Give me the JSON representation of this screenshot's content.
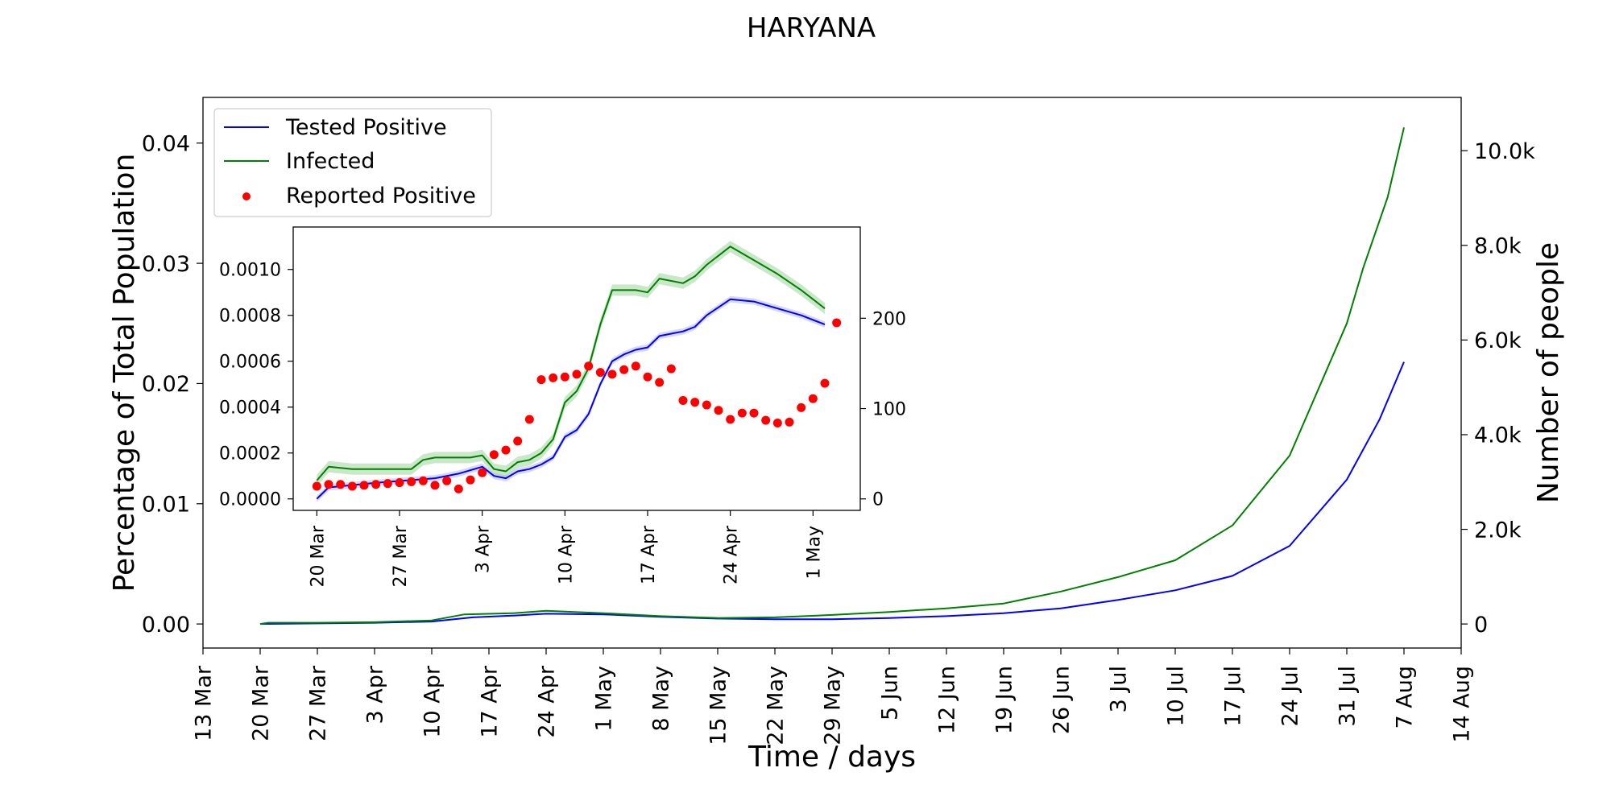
{
  "title": "HARYANA",
  "colors": {
    "tested": "#0000ff",
    "infected": "#008000",
    "reported": "#ff0000",
    "band_infected": "#9ed39e",
    "band_tested": "#b8b8f0"
  },
  "legend": {
    "placement": "upper-left",
    "items": [
      {
        "label": "Tested Positive",
        "marker": "line",
        "color": "#0000ff"
      },
      {
        "label": "Infected",
        "marker": "line",
        "color": "#008000"
      },
      {
        "label": "Reported Positive",
        "marker": "dot",
        "color": "#ff0000"
      }
    ]
  },
  "chart_data": [
    {
      "id": "main",
      "type": "line",
      "title": "HARYANA",
      "xlabel": "Time / days",
      "ylabel": "Percentage of Total Population",
      "y2label": "Number of people",
      "x_ticks": [
        "13 Mar",
        "20 Mar",
        "27 Mar",
        "3 Apr",
        "10 Apr",
        "17 Apr",
        "24 Apr",
        "1 May",
        "8 May",
        "15 May",
        "22 May",
        "29 May",
        "5 Jun",
        "12 Jun",
        "19 Jun",
        "26 Jun",
        "3 Jul",
        "10 Jul",
        "17 Jul",
        "24 Jul",
        "31 Jul",
        "7 Aug",
        "14 Aug"
      ],
      "x_tick_dates": [
        "2020-03-13",
        "2020-03-20",
        "2020-03-27",
        "2020-04-03",
        "2020-04-10",
        "2020-04-17",
        "2020-04-24",
        "2020-05-01",
        "2020-05-08",
        "2020-05-15",
        "2020-05-22",
        "2020-05-29",
        "2020-06-05",
        "2020-06-12",
        "2020-06-19",
        "2020-06-26",
        "2020-07-03",
        "2020-07-10",
        "2020-07-17",
        "2020-07-24",
        "2020-07-31",
        "2020-08-07",
        "2020-08-14"
      ],
      "xlim": [
        "2020-03-13",
        "2020-08-14"
      ],
      "y_ticks": [
        "0.00",
        "0.01",
        "0.02",
        "0.03",
        "0.04"
      ],
      "y_tick_values": [
        0,
        0.01,
        0.02,
        0.03,
        0.04
      ],
      "ylim": [
        -0.002,
        0.0438
      ],
      "y2_ticks": [
        "0",
        "2.0k",
        "4.0k",
        "6.0k",
        "8.0k",
        "10.0k"
      ],
      "y2_tick_values": [
        0,
        2000,
        4000,
        6000,
        8000,
        10000
      ],
      "y2lim": [
        -508,
        11126
      ],
      "grid": false,
      "series": [
        {
          "name": "Tested Positive",
          "color": "#0000ff",
          "axis": "left",
          "points": [
            [
              "2020-03-20",
              0.0
            ],
            [
              "2020-03-27",
              5e-05
            ],
            [
              "2020-04-03",
              0.0001
            ],
            [
              "2020-04-10",
              0.0002
            ],
            [
              "2020-04-15",
              0.00055
            ],
            [
              "2020-04-20",
              0.0007
            ],
            [
              "2020-04-24",
              0.00085
            ],
            [
              "2020-05-01",
              0.0008
            ],
            [
              "2020-05-08",
              0.0006
            ],
            [
              "2020-05-15",
              0.00045
            ],
            [
              "2020-05-22",
              0.0004
            ],
            [
              "2020-05-29",
              0.0004
            ],
            [
              "2020-06-05",
              0.0005
            ],
            [
              "2020-06-12",
              0.00065
            ],
            [
              "2020-06-19",
              0.0009
            ],
            [
              "2020-06-26",
              0.0013
            ],
            [
              "2020-07-03",
              0.002
            ],
            [
              "2020-07-10",
              0.0028
            ],
            [
              "2020-07-17",
              0.004
            ],
            [
              "2020-07-24",
              0.0065
            ],
            [
              "2020-07-31",
              0.012
            ],
            [
              "2020-08-04",
              0.017
            ],
            [
              "2020-08-07",
              0.0218
            ]
          ]
        },
        {
          "name": "Infected",
          "color": "#008000",
          "axis": "left",
          "points": [
            [
              "2020-03-20",
              0.0
            ],
            [
              "2020-03-21",
              0.0001
            ],
            [
              "2020-03-27",
              0.0001
            ],
            [
              "2020-04-03",
              0.00015
            ],
            [
              "2020-04-10",
              0.0003
            ],
            [
              "2020-04-14",
              0.0008
            ],
            [
              "2020-04-20",
              0.0009
            ],
            [
              "2020-04-24",
              0.0011
            ],
            [
              "2020-05-01",
              0.0009
            ],
            [
              "2020-05-08",
              0.00065
            ],
            [
              "2020-05-15",
              0.0005
            ],
            [
              "2020-05-22",
              0.00055
            ],
            [
              "2020-05-29",
              0.00075
            ],
            [
              "2020-06-05",
              0.001
            ],
            [
              "2020-06-12",
              0.0013
            ],
            [
              "2020-06-19",
              0.0017
            ],
            [
              "2020-06-26",
              0.0027
            ],
            [
              "2020-07-03",
              0.0039
            ],
            [
              "2020-07-10",
              0.0053
            ],
            [
              "2020-07-17",
              0.0082
            ],
            [
              "2020-07-24",
              0.014
            ],
            [
              "2020-07-31",
              0.025
            ],
            [
              "2020-08-02",
              0.0296
            ],
            [
              "2020-08-05",
              0.0355
            ],
            [
              "2020-08-07",
              0.0413
            ]
          ]
        }
      ]
    },
    {
      "id": "inset",
      "type": "line",
      "title": "",
      "xlabel": "",
      "ylabel": "",
      "x_ticks": [
        "20 Mar",
        "27 Mar",
        "3 Apr",
        "10 Apr",
        "17 Apr",
        "24 Apr",
        "1 May"
      ],
      "x_tick_dates": [
        "2020-03-20",
        "2020-03-27",
        "2020-04-03",
        "2020-04-10",
        "2020-04-17",
        "2020-04-24",
        "2020-05-01"
      ],
      "xlim": [
        "2020-03-18",
        "2020-05-05"
      ],
      "y_ticks": [
        "0.0000",
        "0.0002",
        "0.0004",
        "0.0006",
        "0.0008",
        "0.0010"
      ],
      "y_tick_values": [
        0,
        0.0002,
        0.0004,
        0.0006,
        0.0008,
        0.001
      ],
      "ylim": [
        -5e-05,
        0.001185
      ],
      "y2_ticks": [
        "0",
        "100",
        "200"
      ],
      "y2_tick_values": [
        0,
        100,
        200
      ],
      "y2lim": [
        -12.7,
        301
      ],
      "grid": false,
      "series": [
        {
          "name": "Tested Positive",
          "color": "#0000ff",
          "axis": "left",
          "points": [
            [
              "2020-03-20",
              0.0
            ],
            [
              "2020-03-21",
              5e-05
            ],
            [
              "2020-03-25",
              7e-05
            ],
            [
              "2020-03-30",
              9e-05
            ],
            [
              "2020-04-01",
              0.00011
            ],
            [
              "2020-04-03",
              0.00014
            ],
            [
              "2020-04-04",
              0.0001
            ],
            [
              "2020-04-05",
              9e-05
            ],
            [
              "2020-04-06",
              0.00012
            ],
            [
              "2020-04-07",
              0.00013
            ],
            [
              "2020-04-08",
              0.00015
            ],
            [
              "2020-04-09",
              0.00018
            ],
            [
              "2020-04-10",
              0.00027
            ],
            [
              "2020-04-11",
              0.0003
            ],
            [
              "2020-04-12",
              0.00037
            ],
            [
              "2020-04-13",
              0.0005
            ],
            [
              "2020-04-14",
              0.0006
            ],
            [
              "2020-04-15",
              0.00063
            ],
            [
              "2020-04-16",
              0.00065
            ],
            [
              "2020-04-17",
              0.00066
            ],
            [
              "2020-04-18",
              0.00071
            ],
            [
              "2020-04-19",
              0.00072
            ],
            [
              "2020-04-20",
              0.00073
            ],
            [
              "2020-04-21",
              0.00075
            ],
            [
              "2020-04-22",
              0.0008
            ],
            [
              "2020-04-24",
              0.00087
            ],
            [
              "2020-04-26",
              0.00086
            ],
            [
              "2020-04-28",
              0.00083
            ],
            [
              "2020-04-30",
              0.0008
            ],
            [
              "2020-05-02",
              0.00076
            ]
          ]
        },
        {
          "name": "Infected",
          "color": "#008000",
          "axis": "left",
          "points": [
            [
              "2020-03-20",
              8e-05
            ],
            [
              "2020-03-21",
              0.00014
            ],
            [
              "2020-03-23",
              0.00013
            ],
            [
              "2020-03-25",
              0.00013
            ],
            [
              "2020-03-27",
              0.00013
            ],
            [
              "2020-03-28",
              0.00013
            ],
            [
              "2020-03-29",
              0.00017
            ],
            [
              "2020-03-30",
              0.00018
            ],
            [
              "2020-04-02",
              0.00018
            ],
            [
              "2020-04-03",
              0.00019
            ],
            [
              "2020-04-04",
              0.00013
            ],
            [
              "2020-04-05",
              0.00012
            ],
            [
              "2020-04-06",
              0.00016
            ],
            [
              "2020-04-07",
              0.00017
            ],
            [
              "2020-04-08",
              0.0002
            ],
            [
              "2020-04-09",
              0.00026
            ],
            [
              "2020-04-10",
              0.00042
            ],
            [
              "2020-04-11",
              0.00047
            ],
            [
              "2020-04-12",
              0.00057
            ],
            [
              "2020-04-13",
              0.00076
            ],
            [
              "2020-04-14",
              0.00091
            ],
            [
              "2020-04-16",
              0.00091
            ],
            [
              "2020-04-17",
              0.0009
            ],
            [
              "2020-04-18",
              0.00096
            ],
            [
              "2020-04-20",
              0.00094
            ],
            [
              "2020-04-21",
              0.00097
            ],
            [
              "2020-04-22",
              0.00102
            ],
            [
              "2020-04-24",
              0.0011
            ],
            [
              "2020-04-26",
              0.00104
            ],
            [
              "2020-04-28",
              0.00098
            ],
            [
              "2020-04-30",
              0.00091
            ],
            [
              "2020-05-02",
              0.00083
            ]
          ]
        },
        {
          "name": "Reported Positive",
          "color": "#ff0000",
          "axis": "right",
          "marker": "dot",
          "points": [
            [
              "2020-03-20",
              14
            ],
            [
              "2020-03-21",
              16
            ],
            [
              "2020-03-22",
              16
            ],
            [
              "2020-03-23",
              14
            ],
            [
              "2020-03-24",
              15
            ],
            [
              "2020-03-25",
              16
            ],
            [
              "2020-03-26",
              17
            ],
            [
              "2020-03-27",
              18
            ],
            [
              "2020-03-28",
              19
            ],
            [
              "2020-03-29",
              20
            ],
            [
              "2020-03-30",
              15
            ],
            [
              "2020-03-31",
              20
            ],
            [
              "2020-04-01",
              11
            ],
            [
              "2020-04-02",
              21
            ],
            [
              "2020-04-03",
              29
            ],
            [
              "2020-04-04",
              49
            ],
            [
              "2020-04-05",
              54
            ],
            [
              "2020-04-06",
              64
            ],
            [
              "2020-04-07",
              88
            ],
            [
              "2020-04-08",
              132
            ],
            [
              "2020-04-09",
              134
            ],
            [
              "2020-04-10",
              135
            ],
            [
              "2020-04-11",
              138
            ],
            [
              "2020-04-12",
              147
            ],
            [
              "2020-04-13",
              140
            ],
            [
              "2020-04-14",
              138
            ],
            [
              "2020-04-15",
              143
            ],
            [
              "2020-04-16",
              147
            ],
            [
              "2020-04-17",
              135
            ],
            [
              "2020-04-18",
              129
            ],
            [
              "2020-04-19",
              144
            ],
            [
              "2020-04-20",
              109
            ],
            [
              "2020-04-21",
              107
            ],
            [
              "2020-04-22",
              104
            ],
            [
              "2020-04-23",
              98
            ],
            [
              "2020-04-24",
              88
            ],
            [
              "2020-04-25",
              95
            ],
            [
              "2020-04-26",
              95
            ],
            [
              "2020-04-27",
              87
            ],
            [
              "2020-04-28",
              84
            ],
            [
              "2020-04-29",
              85
            ],
            [
              "2020-04-30",
              101
            ],
            [
              "2020-05-01",
              111
            ],
            [
              "2020-05-02",
              128
            ],
            [
              "2020-05-03",
              195
            ]
          ]
        }
      ]
    }
  ]
}
